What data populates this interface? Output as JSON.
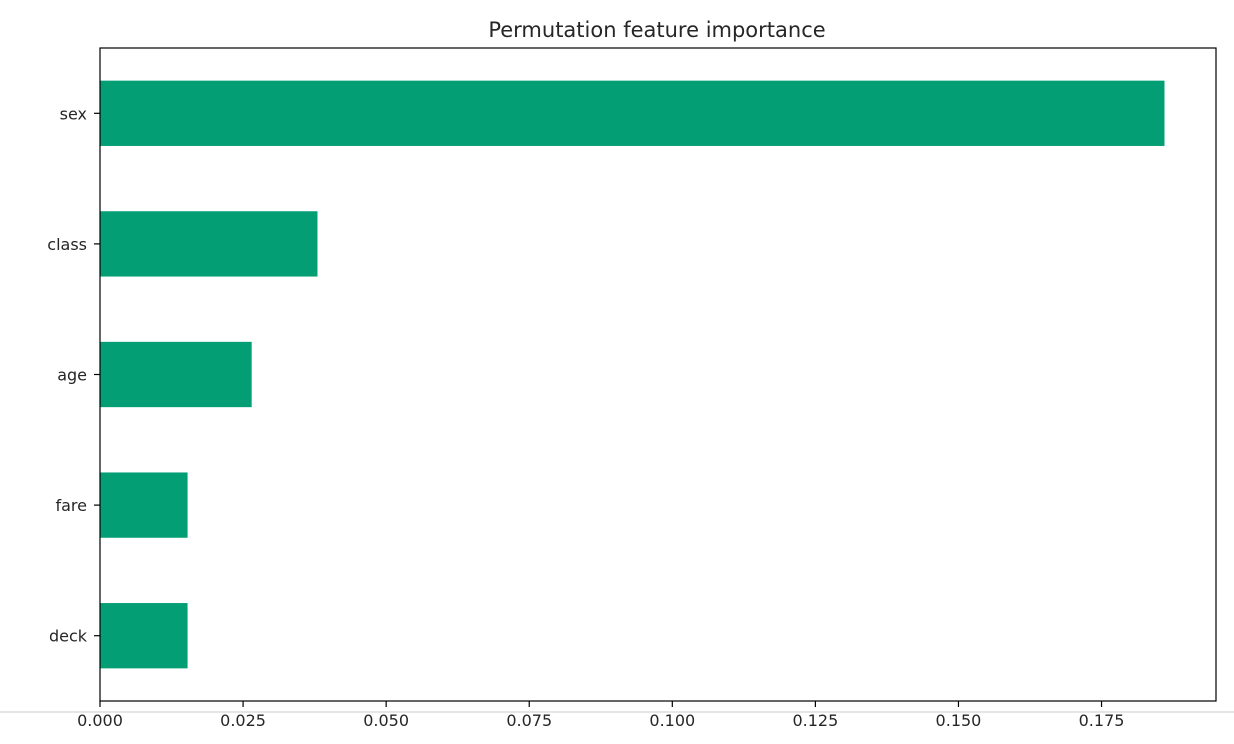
{
  "chart_data": {
    "type": "bar",
    "orientation": "horizontal",
    "title": "Permutation feature importance",
    "xlabel": "",
    "ylabel": "",
    "categories": [
      "sex",
      "class",
      "age",
      "fare",
      "deck"
    ],
    "values": [
      0.186,
      0.038,
      0.0265,
      0.0153,
      0.0153
    ],
    "xlim": [
      0,
      0.195
    ],
    "xticks": [
      "0.000",
      "0.025",
      "0.050",
      "0.075",
      "0.100",
      "0.125",
      "0.150",
      "0.175"
    ],
    "grid": false,
    "legend": "none",
    "bar_color": "#039e74"
  }
}
